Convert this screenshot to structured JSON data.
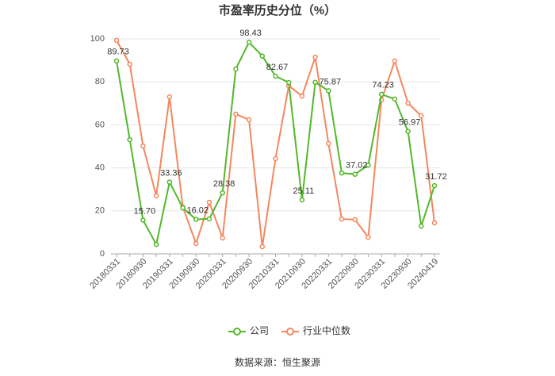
{
  "chart_data": {
    "type": "line",
    "title": "市盈率历史分位（%）",
    "source": "数据来源：恒生聚源",
    "categories": [
      "20180331",
      null,
      "20180930",
      null,
      "20190331",
      null,
      "20190930",
      null,
      "20200331",
      null,
      "20200930",
      null,
      "20210331",
      null,
      "20210930",
      null,
      "20220331",
      null,
      "20220930",
      null,
      "20230331",
      null,
      "20230930",
      null,
      "20240419"
    ],
    "ylim": [
      0,
      100
    ],
    "yticks": [
      0,
      20,
      40,
      60,
      80,
      100
    ],
    "grid": true,
    "legend": "bottom",
    "series": [
      {
        "name": "公司",
        "color": "#52b82a",
        "values": [
          89.73,
          53.1,
          15.7,
          4.4,
          33.36,
          21.4,
          16.02,
          16.3,
          28.38,
          86.0,
          98.43,
          92.0,
          82.67,
          79.7,
          25.11,
          79.8,
          75.87,
          37.6,
          37.02,
          41.3,
          74.23,
          72.0,
          56.97,
          12.9,
          31.72
        ],
        "value_labels": [
          "89.73",
          null,
          "15.70",
          null,
          "33.36",
          null,
          "16.02",
          null,
          "28.38",
          null,
          "98.43",
          null,
          "82.67",
          null,
          "25.11",
          null,
          "75.87",
          null,
          "37.02",
          null,
          "74.23",
          null,
          "56.97",
          null,
          "31.72"
        ]
      },
      {
        "name": "行业中位数",
        "color": "#f4875f",
        "values": [
          99.3,
          88.2,
          50.2,
          27.0,
          73.0,
          21.8,
          4.8,
          24.0,
          7.4,
          65.0,
          62.4,
          3.3,
          44.3,
          78.2,
          73.4,
          91.5,
          51.3,
          16.2,
          15.9,
          7.7,
          71.6,
          89.7,
          70.1,
          64.2,
          14.4
        ]
      }
    ]
  }
}
